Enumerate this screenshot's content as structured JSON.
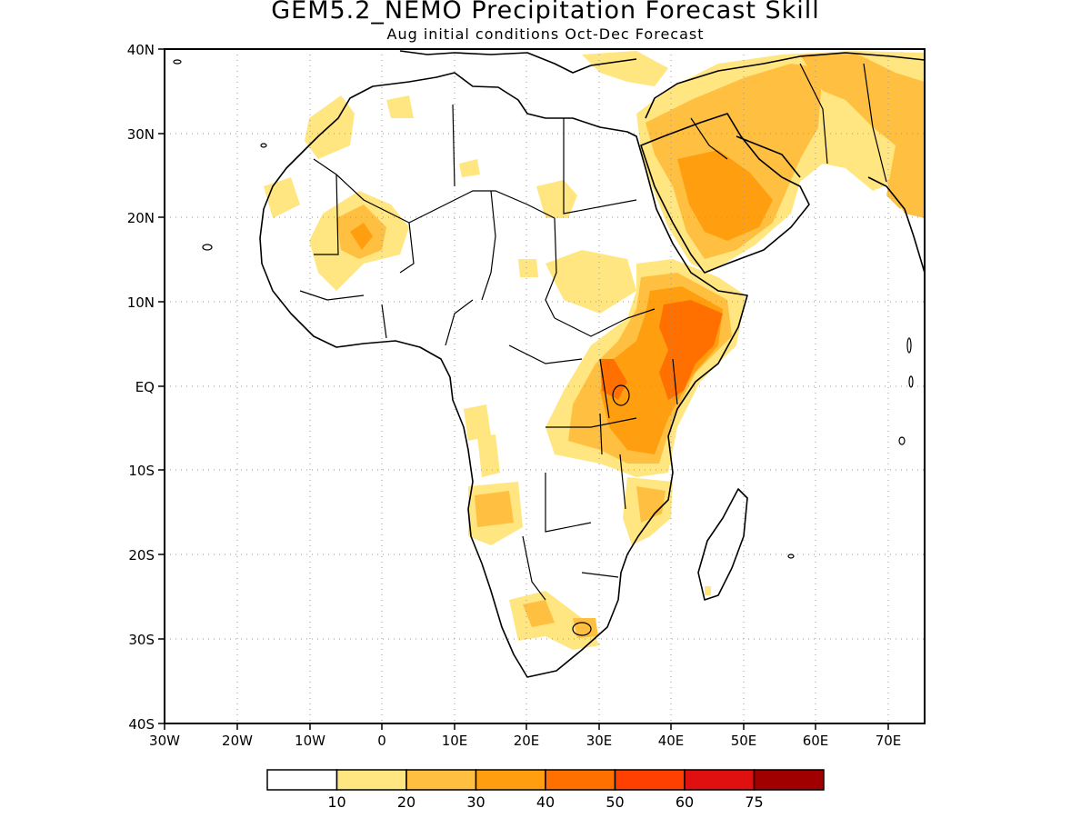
{
  "title": "GEM5.2_NEMO Precipitation Forecast Skill",
  "subtitle": "Aug initial conditions  Oct-Dec Forecast",
  "colors": {
    "white": "#ffffff",
    "c10": "#ffe680",
    "c20": "#ffbf40",
    "c30": "#ff9f10",
    "c40": "#ff7000",
    "c50": "#ff4000",
    "c60": "#e01010",
    "c75": "#a00000"
  },
  "map": {
    "lon_range": [
      -30,
      75
    ],
    "lat_range": [
      -40,
      40
    ],
    "lon_ticks": [
      "30W",
      "20W",
      "10W",
      "0",
      "10E",
      "20E",
      "30E",
      "40E",
      "50E",
      "60E",
      "70E"
    ],
    "lat_ticks": [
      "40N",
      "30N",
      "20N",
      "10N",
      "EQ",
      "10S",
      "20S",
      "30S",
      "40S"
    ],
    "grid": "dotted"
  },
  "colorbar": {
    "labels": [
      "10",
      "20",
      "30",
      "40",
      "50",
      "60",
      "75"
    ]
  }
}
